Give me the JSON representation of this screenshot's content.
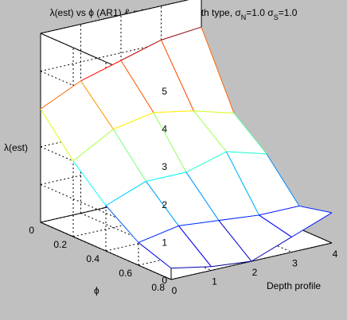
{
  "chart_data": {
    "type": "surface",
    "title": {
      "parts": [
        {
          "t": "λ(est) vs ϕ (AR1) & mixed-layer depth type, σ"
        },
        {
          "t": "N",
          "sub": true
        },
        {
          "t": "=1.0 σ"
        },
        {
          "t": "S",
          "sub": true
        },
        {
          "t": "=1.0"
        }
      ]
    },
    "xlabel": "Depth profile",
    "ylabel": "ϕ",
    "zlabel": "λ(est)",
    "xlim": [
      0,
      4
    ],
    "ylim": [
      0,
      0.8
    ],
    "zlim": [
      0,
      5
    ],
    "xticks": [
      "0",
      "1",
      "2",
      "3",
      "4"
    ],
    "yticks": [
      "0",
      "0.2",
      "0.4",
      "0.6",
      "0.8"
    ],
    "zticks": [
      "0",
      "1",
      "2",
      "3",
      "4",
      "5"
    ],
    "grid": true,
    "colormap": "jet",
    "x": [
      0,
      1,
      2,
      3,
      4
    ],
    "y": [
      0,
      0.2,
      0.4,
      0.6,
      0.8
    ],
    "z": [
      [
        3.0,
        3.5,
        3.8,
        4.1,
        4.2
      ],
      [
        2.0,
        2.6,
        2.8,
        2.6,
        2.3
      ],
      [
        1.2,
        1.6,
        1.6,
        1.9,
        1.6
      ],
      [
        0.6,
        0.8,
        0.7,
        0.6,
        0.6
      ],
      [
        0.3,
        0.1,
        0.0,
        0.4,
        0.8
      ]
    ]
  }
}
